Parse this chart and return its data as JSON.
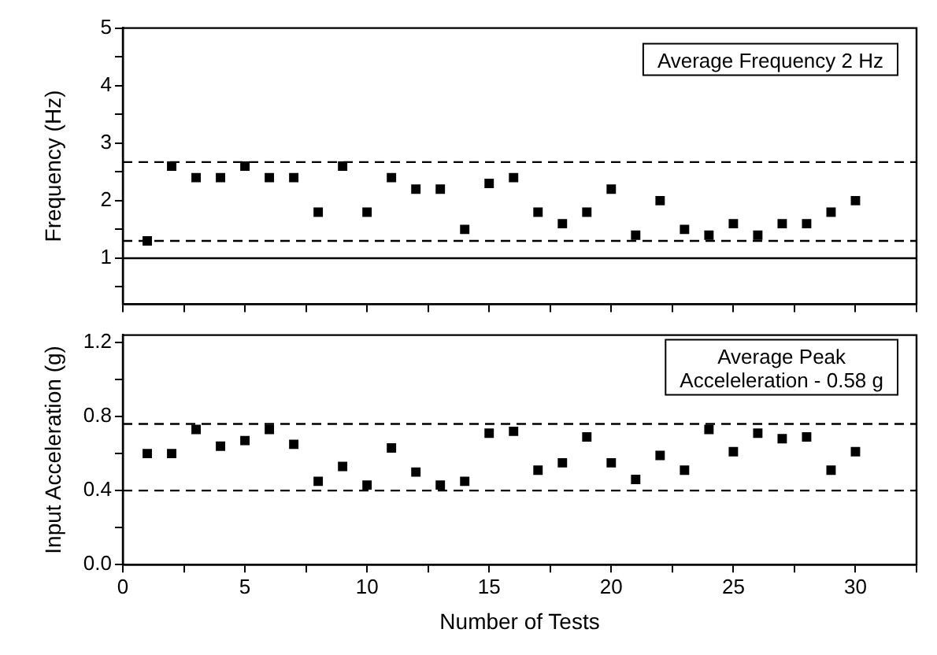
{
  "chart_data": [
    {
      "type": "scatter",
      "ylabel": "Frequency (Hz)",
      "annotations": [
        "Average Frequency 2 Hz"
      ],
      "x": [
        1,
        2,
        3,
        4,
        5,
        6,
        7,
        8,
        9,
        10,
        11,
        12,
        13,
        14,
        15,
        16,
        17,
        18,
        19,
        20,
        21,
        22,
        23,
        24,
        25,
        26,
        27,
        28,
        29,
        30
      ],
      "series": [
        {
          "color": "#000000",
          "values": [
            1.3,
            2.6,
            2.4,
            2.4,
            2.6,
            2.4,
            2.4,
            1.8,
            2.6,
            1.8,
            2.4,
            2.2,
            2.2,
            1.5,
            2.3,
            2.4,
            1.8,
            1.6,
            1.8,
            2.2,
            1.4,
            2.0,
            1.5,
            1.4,
            1.6,
            1.4,
            1.6,
            1.6,
            1.8,
            2.0
          ]
        }
      ],
      "marker": "square",
      "grid": false,
      "legend": false,
      "tick_labels": "y",
      "xlim": [
        0,
        32.5
      ],
      "xticks": [
        0,
        {
          "value": 2.5,
          "label": null
        },
        5,
        {
          "value": 7.5,
          "label": null
        },
        10,
        {
          "value": 12.5,
          "label": null
        },
        15,
        {
          "value": 17.5,
          "label": null
        },
        20,
        {
          "value": 22.5,
          "label": null
        },
        25,
        {
          "value": 27.5,
          "label": null
        },
        30,
        {
          "value": 32.5,
          "label": null
        }
      ],
      "ylim": [
        0.2,
        5
      ],
      "yticks": [
        {
          "value": 0.5,
          "label": null
        },
        1,
        {
          "value": 1.5,
          "label": null
        },
        2,
        {
          "value": 2.5,
          "label": null
        },
        3,
        {
          "value": 3.5,
          "label": null
        },
        4,
        {
          "value": 4.5,
          "label": null
        },
        5
      ],
      "ref_lines": [
        {
          "axis": "y",
          "value": 2.67,
          "color": "#000000",
          "line_style": "dashed"
        },
        {
          "axis": "y",
          "value": 1.3,
          "color": "#000000",
          "line_style": "dashed"
        },
        {
          "axis": "y",
          "value": 1.0,
          "color": "#000000",
          "line_style": "solid"
        }
      ]
    },
    {
      "type": "scatter",
      "xlabel": "Number of Tests",
      "ylabel": "Input Acceleration (g)",
      "annotations": [
        "Average Peak\nAcceleleration - 0.58 g"
      ],
      "x": [
        1,
        2,
        3,
        4,
        5,
        6,
        7,
        8,
        9,
        10,
        11,
        12,
        13,
        14,
        15,
        16,
        17,
        18,
        19,
        20,
        21,
        22,
        23,
        24,
        25,
        26,
        27,
        28,
        29,
        30
      ],
      "series": [
        {
          "color": "#000000",
          "values": [
            0.6,
            0.6,
            0.73,
            0.64,
            0.67,
            0.73,
            0.65,
            0.45,
            0.53,
            0.43,
            0.63,
            0.5,
            0.43,
            0.45,
            0.71,
            0.72,
            0.51,
            0.55,
            0.69,
            0.55,
            0.46,
            0.59,
            0.51,
            0.73,
            0.61,
            0.71,
            0.68,
            0.69,
            0.51,
            0.61
          ]
        }
      ],
      "marker": "square",
      "grid": false,
      "legend": false,
      "xlim": [
        0,
        32.5
      ],
      "xticks": [
        0,
        {
          "value": 2.5,
          "label": null
        },
        5,
        {
          "value": 7.5,
          "label": null
        },
        10,
        {
          "value": 12.5,
          "label": null
        },
        15,
        {
          "value": 17.5,
          "label": null
        },
        20,
        {
          "value": 22.5,
          "label": null
        },
        25,
        {
          "value": 27.5,
          "label": null
        },
        30,
        {
          "value": 32.5,
          "label": null
        }
      ],
      "ylim": [
        0,
        1.24
      ],
      "yticks": [
        {
          "value": 0,
          "label": "0.0"
        },
        {
          "value": 0.2,
          "label": null
        },
        {
          "value": 0.4,
          "label": "0.4"
        },
        {
          "value": 0.6,
          "label": null
        },
        {
          "value": 0.8,
          "label": "0.8"
        },
        {
          "value": 1.0,
          "label": null
        },
        {
          "value": 1.2,
          "label": "1.2"
        }
      ],
      "ref_lines": [
        {
          "axis": "y",
          "value": 0.76,
          "color": "#000000",
          "line_style": "dashed"
        },
        {
          "axis": "y",
          "value": 0.4,
          "color": "#000000",
          "line_style": "dashed"
        }
      ]
    }
  ]
}
